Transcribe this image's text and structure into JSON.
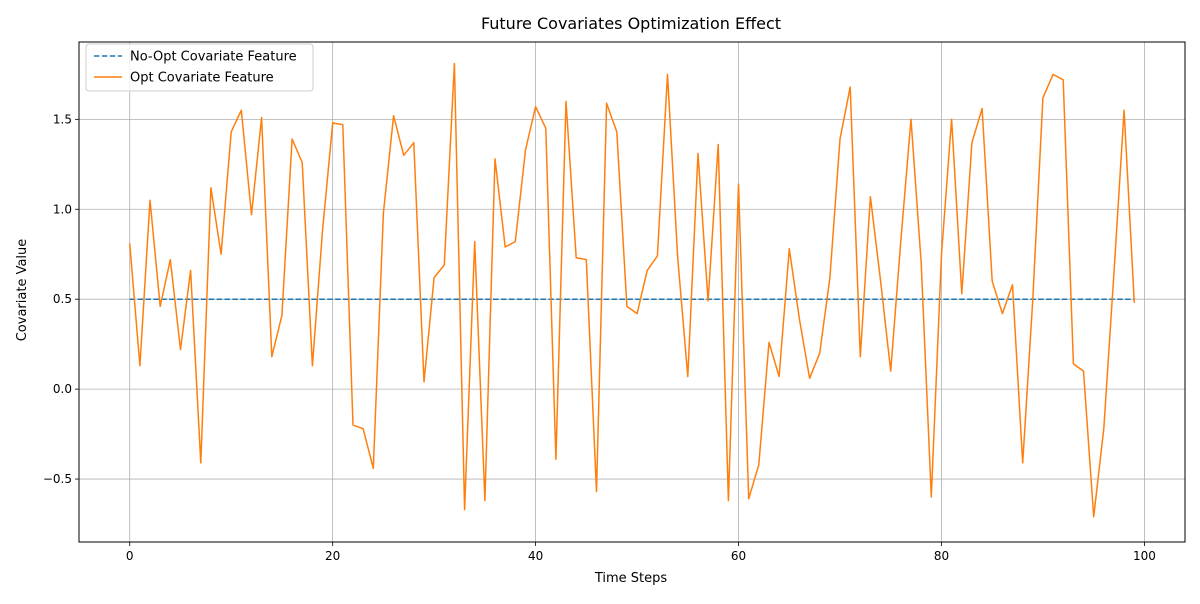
{
  "chart_data": {
    "type": "line",
    "title": "Future Covariates Optimization Effect",
    "xlabel": "Time Steps",
    "ylabel": "Covariate Value",
    "xlim": [
      -5,
      104
    ],
    "ylim": [
      -0.85,
      1.93
    ],
    "xticks": [
      0,
      20,
      40,
      60,
      80,
      100
    ],
    "yticks": [
      -0.5,
      0.0,
      0.5,
      1.0,
      1.5
    ],
    "xtick_labels": [
      "0",
      "20",
      "40",
      "60",
      "80",
      "100"
    ],
    "ytick_labels": [
      "−0.5",
      "0.0",
      "0.5",
      "1.0",
      "1.5"
    ],
    "grid": true,
    "legend_position": "upper-left",
    "series": [
      {
        "name": "No-Opt Covariate Feature",
        "color": "#1f77b4",
        "style": "dashed",
        "x_start": 0,
        "x_end": 99,
        "values": [
          0.5,
          0.5
        ]
      },
      {
        "name": "Opt Covariate Feature",
        "color": "#ff7f0e",
        "style": "solid",
        "x_start": 0,
        "values": [
          0.81,
          0.13,
          1.05,
          0.46,
          0.72,
          0.22,
          0.66,
          -0.41,
          1.12,
          0.75,
          1.43,
          1.55,
          0.97,
          1.51,
          0.18,
          0.41,
          1.39,
          1.26,
          0.13,
          0.88,
          1.48,
          1.47,
          -0.2,
          -0.22,
          -0.44,
          0.98,
          1.52,
          1.3,
          1.37,
          0.04,
          0.62,
          0.69,
          1.81,
          -0.67,
          0.82,
          -0.62,
          1.28,
          0.79,
          0.82,
          1.33,
          1.57,
          1.45,
          -0.39,
          1.6,
          0.73,
          0.72,
          -0.57,
          1.59,
          1.43,
          0.46,
          0.42,
          0.66,
          0.74,
          1.75,
          0.73,
          0.07,
          1.31,
          0.49,
          1.36,
          -0.62,
          1.14,
          -0.61,
          -0.42,
          0.26,
          0.07,
          0.78,
          0.39,
          0.06,
          0.2,
          0.62,
          1.39,
          1.68,
          0.18,
          1.07,
          0.6,
          0.1,
          0.83,
          1.5,
          0.7,
          -0.6,
          0.75,
          1.5,
          0.53,
          1.37,
          1.56,
          0.6,
          0.42,
          0.58,
          -0.41,
          0.5,
          1.62,
          1.75,
          1.72,
          0.14,
          0.1,
          -0.71,
          -0.22,
          0.65,
          1.55,
          0.48
        ]
      }
    ]
  }
}
